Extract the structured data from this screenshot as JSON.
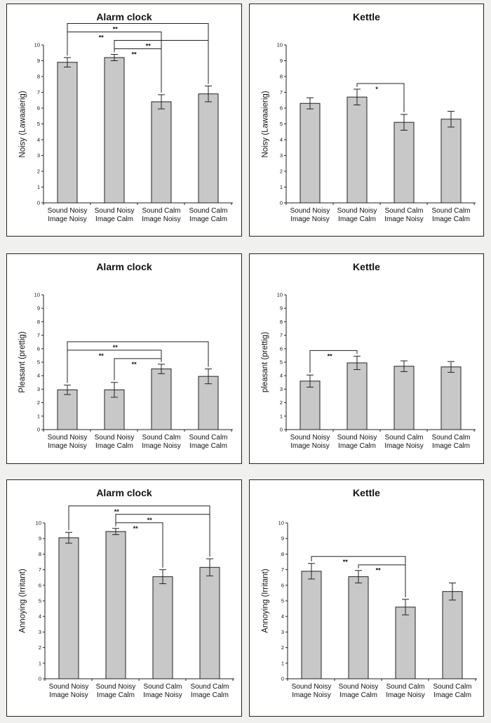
{
  "chart_data": [
    {
      "type": "bar",
      "title": "Alarm clock",
      "ylabel": "Noisy (Lawaaierig)",
      "categories": [
        [
          "Sound Noisy",
          "Image Noisy"
        ],
        [
          "Sound Noisy",
          "Image Calm"
        ],
        [
          "Sound Calm",
          "Image Noisy"
        ],
        [
          "Sound Calm",
          "Image Calm"
        ]
      ],
      "values": [
        8.9,
        9.2,
        6.4,
        6.9
      ],
      "errors": [
        0.3,
        0.2,
        0.45,
        0.5
      ],
      "ylim": [
        0,
        10
      ],
      "yticks": [
        0,
        1,
        2,
        3,
        4,
        5,
        6,
        7,
        8,
        9,
        10
      ],
      "significance": [
        {
          "from": 0,
          "to": 3,
          "label": "**"
        },
        {
          "from": 0,
          "to": 2,
          "label": "**"
        },
        {
          "from": 1,
          "to": 3,
          "label": "**"
        },
        {
          "from": 1,
          "to": 2,
          "label": "**"
        }
      ]
    },
    {
      "type": "bar",
      "title": "Kettle",
      "ylabel": "Noisy (Lawaaierig)",
      "categories": [
        [
          "Sound Noisy",
          "Image Noisy"
        ],
        [
          "Sound Noisy",
          "Image Calm"
        ],
        [
          "Sound Calm",
          "Image Noisy"
        ],
        [
          "Sound Calm",
          "Image Calm"
        ]
      ],
      "values": [
        6.3,
        6.7,
        5.1,
        5.3
      ],
      "errors": [
        0.35,
        0.5,
        0.5,
        0.5
      ],
      "ylim": [
        0,
        10
      ],
      "yticks": [
        0,
        1,
        2,
        3,
        4,
        5,
        6,
        7,
        8,
        9,
        10
      ],
      "significance": [
        {
          "from": 1,
          "to": 2,
          "label": "*"
        }
      ]
    },
    {
      "type": "bar",
      "title": "Alarm clock",
      "ylabel": "Pleasant (prettig)",
      "categories": [
        [
          "Sound Noisy",
          "Image Noisy"
        ],
        [
          "Sound Noisy",
          "Image Calm"
        ],
        [
          "Sound Calm",
          "Image Noisy"
        ],
        [
          "Sound Calm",
          "Image Calm"
        ]
      ],
      "values": [
        2.95,
        2.95,
        4.5,
        3.95
      ],
      "errors": [
        0.35,
        0.55,
        0.35,
        0.55
      ],
      "ylim": [
        0,
        10
      ],
      "yticks": [
        0,
        1,
        2,
        3,
        4,
        5,
        6,
        7,
        8,
        9,
        10
      ],
      "significance": [
        {
          "from": 0,
          "to": 3,
          "label": "**"
        },
        {
          "from": 0,
          "to": 2,
          "label": "**"
        },
        {
          "from": 1,
          "to": 2,
          "label": "**"
        }
      ]
    },
    {
      "type": "bar",
      "title": "Kettle",
      "ylabel": "pleasant (prettig)",
      "categories": [
        [
          "Sound Noisy",
          "Image Noisy"
        ],
        [
          "Sound Noisy",
          "Image Calm"
        ],
        [
          "Sound Calm",
          "Image Noisy"
        ],
        [
          "Sound Calm",
          "Image Calm"
        ]
      ],
      "values": [
        3.6,
        4.95,
        4.7,
        4.65
      ],
      "errors": [
        0.45,
        0.5,
        0.4,
        0.4
      ],
      "ylim": [
        0,
        10
      ],
      "yticks": [
        0,
        1,
        2,
        3,
        4,
        5,
        6,
        7,
        8,
        9,
        10
      ],
      "significance": [
        {
          "from": 0,
          "to": 1,
          "label": "**"
        }
      ]
    },
    {
      "type": "bar",
      "title": "Alarm clock",
      "ylabel": "Annoying (Irritant)",
      "categories": [
        [
          "Sound Noisy",
          "Image Noisy"
        ],
        [
          "Sound Noisy",
          "Image Calm"
        ],
        [
          "Sound Calm",
          "Image Noisy"
        ],
        [
          "Sound Calm",
          "Image Calm"
        ]
      ],
      "values": [
        9.05,
        9.45,
        6.55,
        7.15
      ],
      "errors": [
        0.35,
        0.2,
        0.45,
        0.55
      ],
      "ylim": [
        0,
        10
      ],
      "yticks": [
        0,
        1,
        2,
        3,
        4,
        5,
        6,
        7,
        8,
        9,
        10
      ],
      "significance": [
        {
          "from": 0,
          "to": 3,
          "label": "**"
        },
        {
          "from": 1,
          "to": 3,
          "label": "**"
        },
        {
          "from": 1,
          "to": 2,
          "label": "**"
        }
      ]
    },
    {
      "type": "bar",
      "title": "Kettle",
      "ylabel": "Annoying (Irritant)",
      "categories": [
        [
          "Sound Noisy",
          "Image Noisy"
        ],
        [
          "Sound Noisy",
          "Image Calm"
        ],
        [
          "Sound Calm",
          "Image Noisy"
        ],
        [
          "Sound Calm",
          "Image Calm"
        ]
      ],
      "values": [
        6.9,
        6.55,
        4.6,
        5.6
      ],
      "errors": [
        0.5,
        0.4,
        0.5,
        0.55
      ],
      "ylim": [
        0,
        10
      ],
      "yticks": [
        0,
        1,
        2,
        3,
        4,
        5,
        6,
        7,
        8,
        9,
        10
      ],
      "significance": [
        {
          "from": 0,
          "to": 2,
          "label": "**"
        },
        {
          "from": 1,
          "to": 2,
          "label": "**"
        }
      ]
    }
  ],
  "colors": {
    "bar_fill": "#c8c8c8",
    "bar_stroke": "#222222",
    "axis": "#222222",
    "background": "#f0f0ee",
    "panel": "#ffffff"
  }
}
